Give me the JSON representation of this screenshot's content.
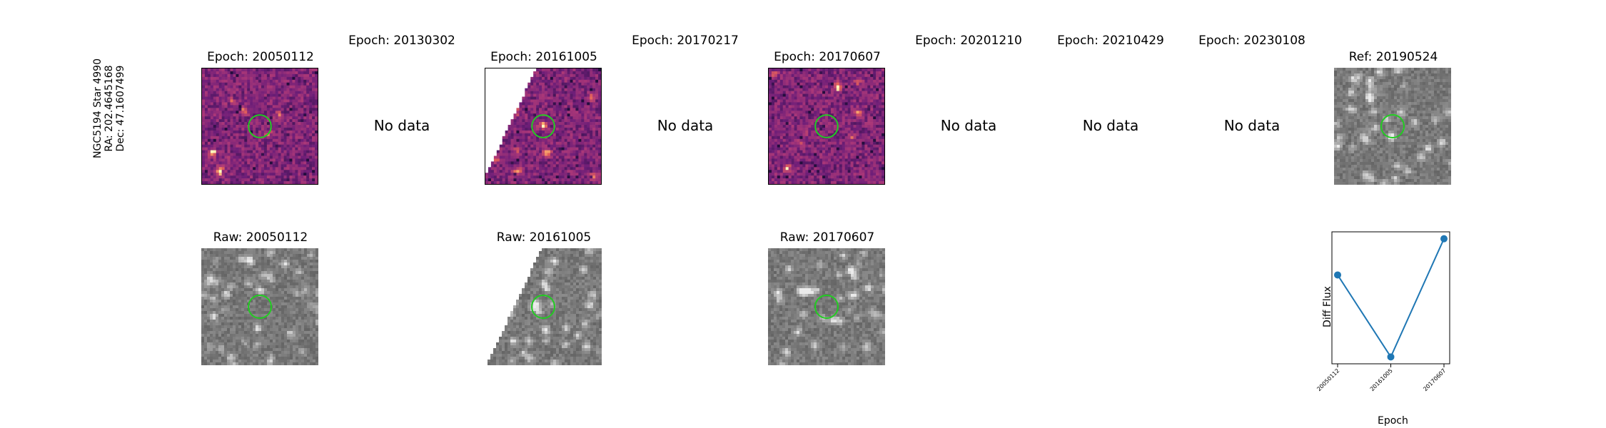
{
  "side_label": {
    "line1": "NGC5194 Star 4990",
    "line2": "RA: 202.4645168",
    "line3": "Dec: 47.1607499"
  },
  "top_row": [
    {
      "title": "Epoch: 20050112",
      "has_data": true
    },
    {
      "title": "Epoch: 20130302",
      "has_data": false,
      "message": "No data"
    },
    {
      "title": "Epoch: 20161005",
      "has_data": true
    },
    {
      "title": "Epoch: 20170217",
      "has_data": false,
      "message": "No data"
    },
    {
      "title": "Epoch: 20170607",
      "has_data": true
    },
    {
      "title": "Epoch: 20201210",
      "has_data": false,
      "message": "No data"
    },
    {
      "title": "Epoch: 20210429",
      "has_data": false,
      "message": "No data"
    },
    {
      "title": "Epoch: 20230108",
      "has_data": false,
      "message": "No data"
    },
    {
      "title": "Ref: 20190524",
      "has_data": true
    }
  ],
  "bottom_row": [
    {
      "title": "Raw: 20050112"
    },
    {
      "title": "Raw: 20161005"
    },
    {
      "title": "Raw: 20170607"
    }
  ],
  "colors": {
    "diff_base": "#8a2a82",
    "diff_hot": "#fcfdbf",
    "raw_base": "#7a7a7a",
    "marker_circle": "#22cc22",
    "series": "#1f77b4"
  },
  "chart_data": {
    "type": "line",
    "categories": [
      "20050112",
      "20161005",
      "20170607"
    ],
    "values": [
      0.58,
      -0.37,
      1.0
    ],
    "xlabel": "Epoch",
    "ylabel": "Diff Flux",
    "ylim": [
      -0.45,
      1.08
    ],
    "grid": false
  }
}
